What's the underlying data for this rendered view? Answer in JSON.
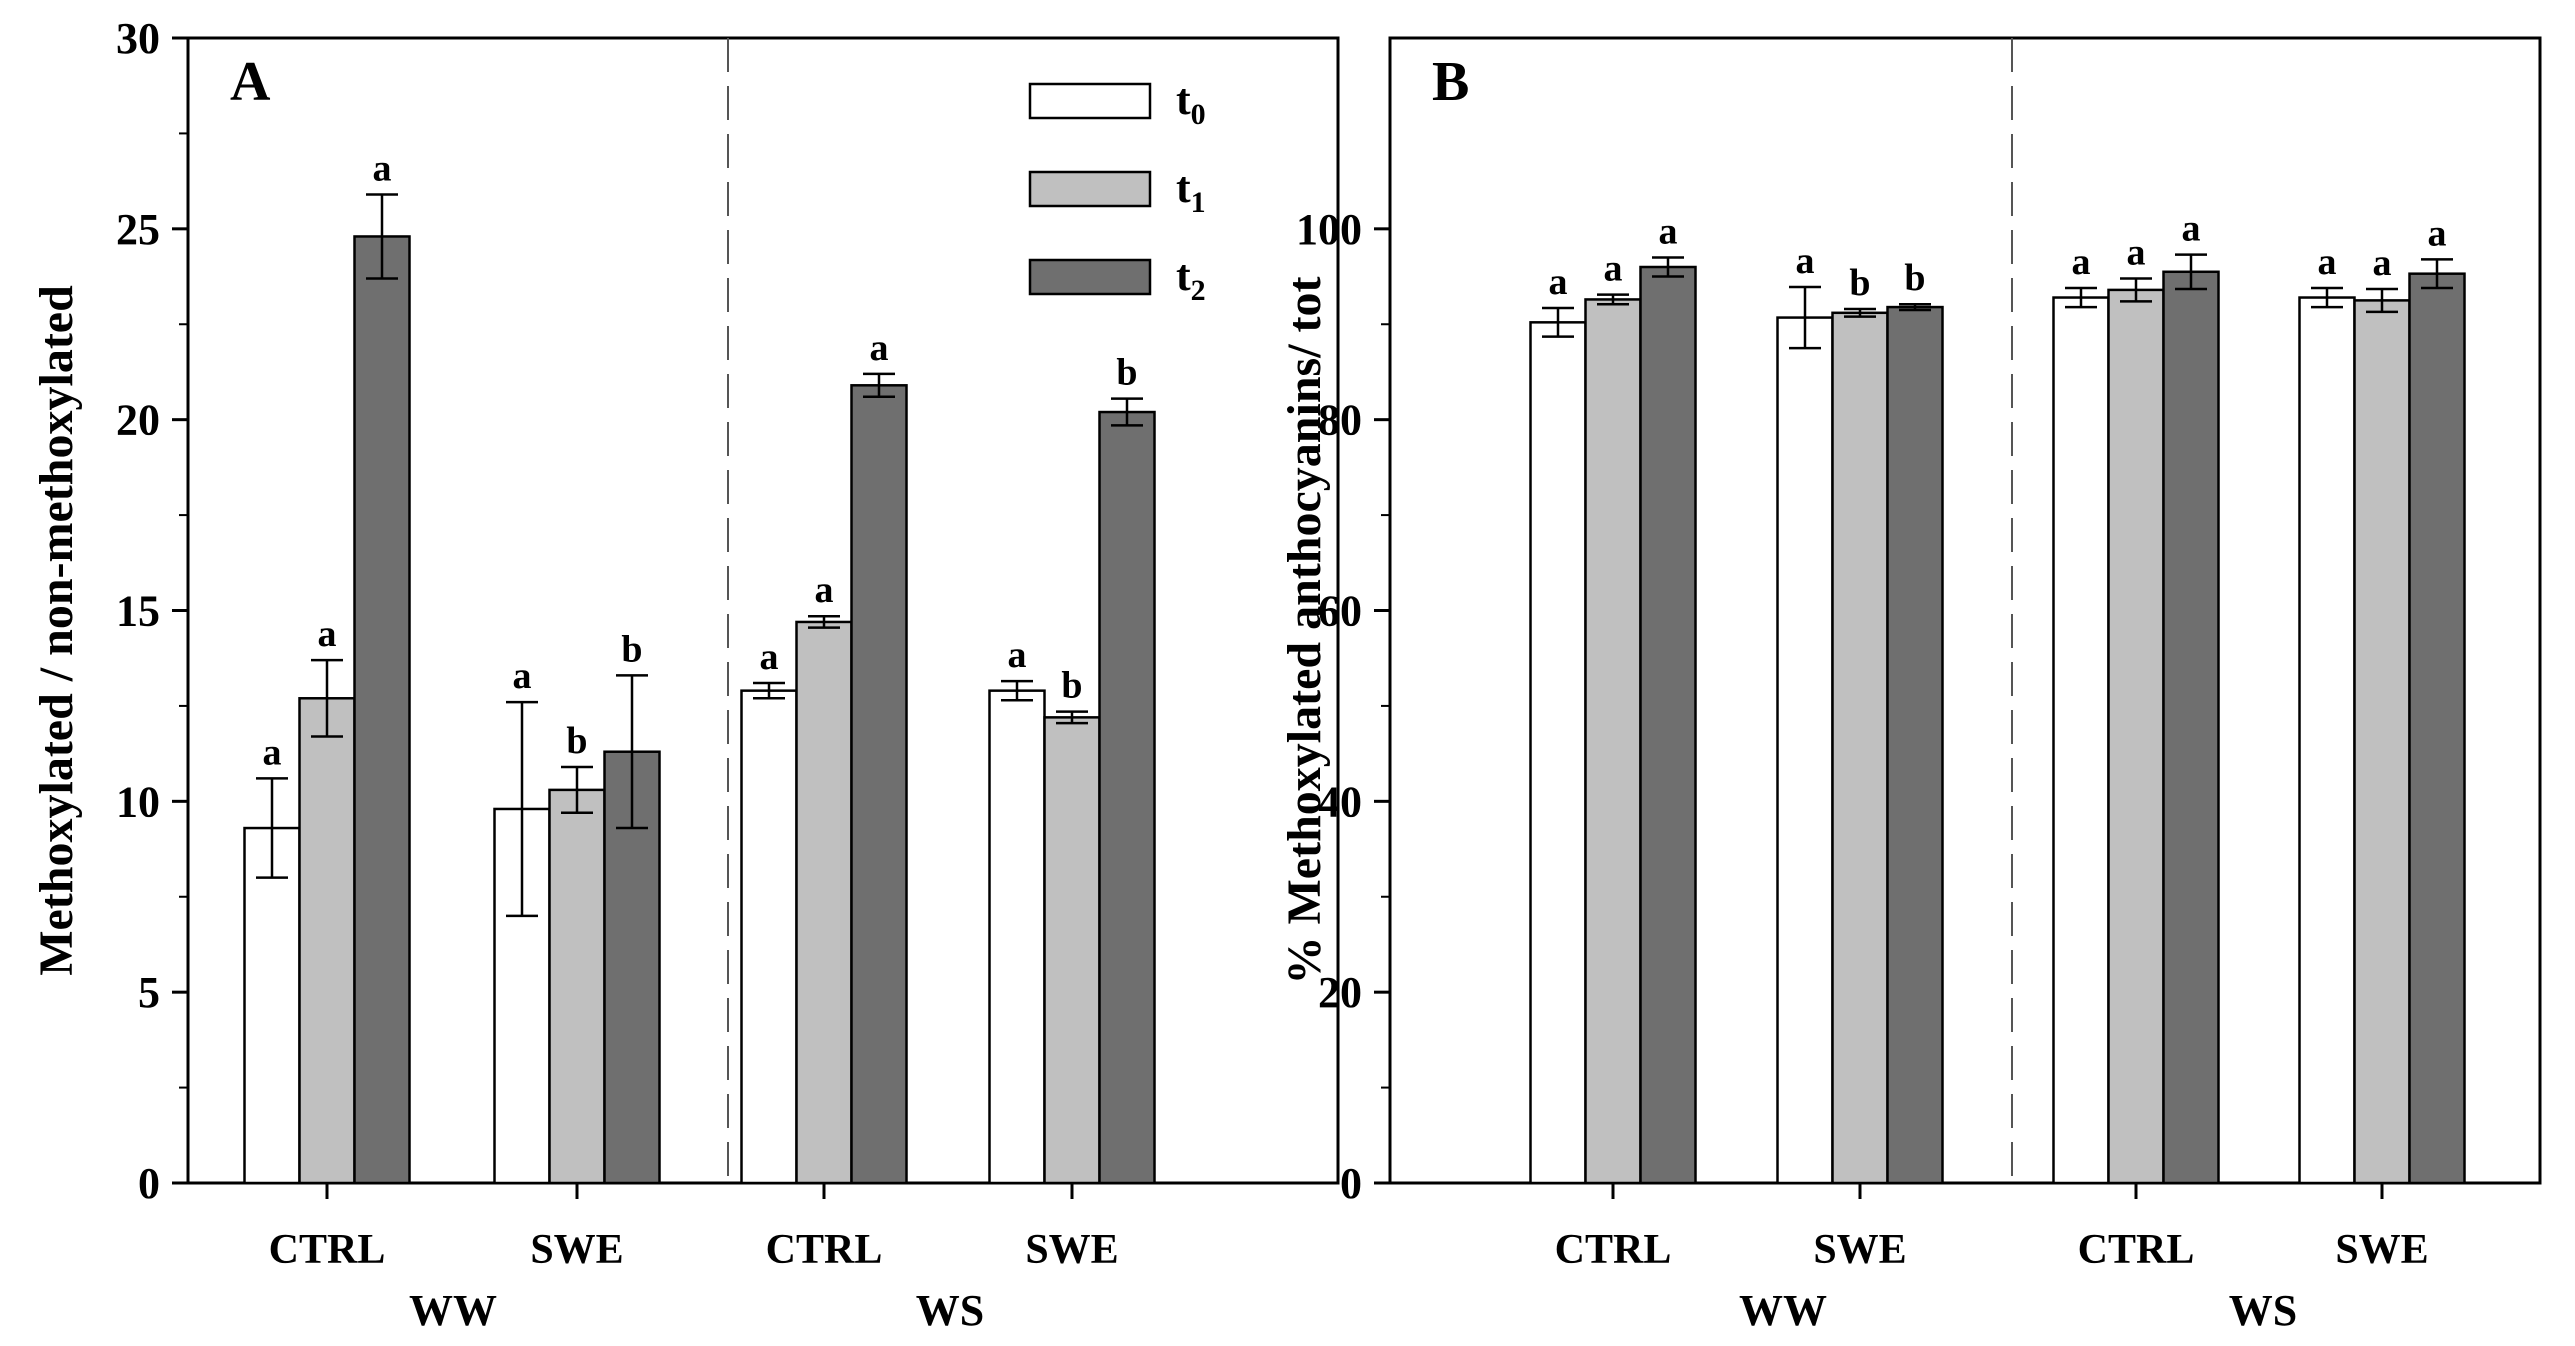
{
  "chart_data": [
    {
      "type": "bar",
      "panel_label": "A",
      "ylabel": "Methoxylated / non-methoxylated",
      "ylim": [
        0,
        30
      ],
      "yticks": [
        0,
        5,
        10,
        15,
        20,
        25,
        30
      ],
      "categories": [
        "CTRL",
        "SWE",
        "CTRL",
        "SWE"
      ],
      "groups": [
        {
          "label": "WW",
          "categories": [
            0,
            1
          ]
        },
        {
          "label": "WS",
          "categories": [
            2,
            3
          ]
        }
      ],
      "series": [
        {
          "name": "t0",
          "base": "t",
          "sub": "0",
          "color": "#ffffff",
          "values": [
            9.3,
            9.8,
            12.9,
            12.9
          ],
          "errors": [
            1.3,
            2.8,
            0.2,
            0.25
          ],
          "letters": [
            "a",
            "a",
            "a",
            "a"
          ]
        },
        {
          "name": "t1",
          "base": "t",
          "sub": "1",
          "color": "#c0c0c0",
          "values": [
            12.7,
            10.3,
            14.7,
            12.2
          ],
          "errors": [
            1.0,
            0.6,
            0.15,
            0.15
          ],
          "letters": [
            "a",
            "b",
            "a",
            "b"
          ]
        },
        {
          "name": "t2",
          "base": "t",
          "sub": "2",
          "color": "#6f6f6f",
          "values": [
            24.8,
            11.3,
            20.9,
            20.2
          ],
          "errors": [
            1.1,
            2.0,
            0.3,
            0.35
          ],
          "letters": [
            "a",
            "b",
            "a",
            "b"
          ]
        }
      ],
      "legend_position": "top-right"
    },
    {
      "type": "bar",
      "panel_label": "B",
      "ylabel": "% Methoxylated anthocyanins/ tot",
      "ylim": [
        0,
        120
      ],
      "yticks": [
        0,
        20,
        40,
        60,
        80,
        100
      ],
      "categories": [
        "CTRL",
        "SWE",
        "CTRL",
        "SWE"
      ],
      "groups": [
        {
          "label": "WW",
          "categories": [
            0,
            1
          ]
        },
        {
          "label": "WS",
          "categories": [
            2,
            3
          ]
        }
      ],
      "series": [
        {
          "name": "t0",
          "color": "#ffffff",
          "values": [
            90.2,
            90.7,
            92.8,
            92.8
          ],
          "errors": [
            1.5,
            3.2,
            1.0,
            1.0
          ],
          "letters": [
            "a",
            "a",
            "a",
            "a"
          ]
        },
        {
          "name": "t1",
          "color": "#c0c0c0",
          "values": [
            92.6,
            91.2,
            93.6,
            92.5
          ],
          "errors": [
            0.5,
            0.4,
            1.2,
            1.2
          ],
          "letters": [
            "a",
            "b",
            "a",
            "a"
          ]
        },
        {
          "name": "t2",
          "color": "#6f6f6f",
          "values": [
            96.0,
            91.8,
            95.5,
            95.3
          ],
          "errors": [
            1.0,
            0.3,
            1.8,
            1.5
          ],
          "letters": [
            "a",
            "b",
            "a",
            "a"
          ]
        }
      ]
    }
  ]
}
